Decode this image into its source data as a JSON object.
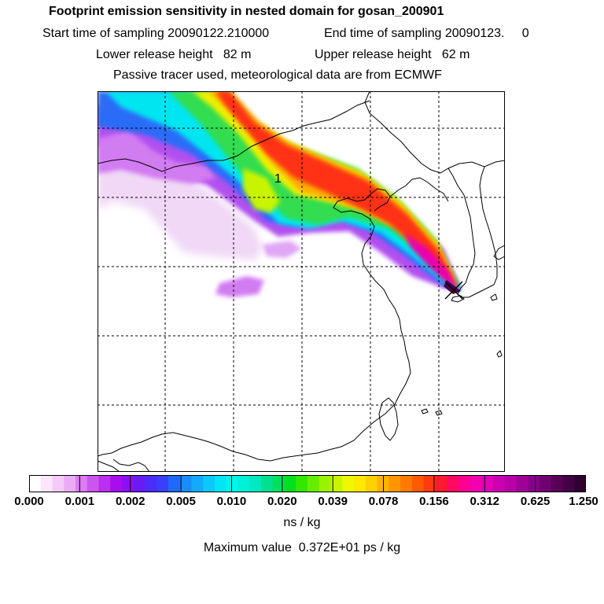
{
  "header": {
    "title": "Footprint emission sensitivity in nested domain for gosan_200901",
    "start_sampling": "Start time of sampling 20090122.210000",
    "end_sampling": "End time of sampling 20090123.     0",
    "lower_release": "Lower release height   82 m",
    "upper_release": "Upper release height   62 m",
    "tracer_note": "Passive tracer used, meteorological data are from ECMWF"
  },
  "map": {
    "marker_label": "1",
    "receptor_marker": "x-cross-icon",
    "gridlines": "dashed"
  },
  "colorbar": {
    "tick_labels": [
      "0.000",
      "0.001",
      "0.002",
      "0.005",
      "0.010",
      "0.020",
      "0.039",
      "0.078",
      "0.156",
      "0.312",
      "0.625",
      "1.250"
    ],
    "colors": [
      "#ffffff",
      "#fbe6fb",
      "#f4caf7",
      "#ebaaf5",
      "#dc7cf2",
      "#cd55ef",
      "#bc2ef0",
      "#a80df0",
      "#8b10f2",
      "#6a1bf5",
      "#4a2df8",
      "#3a3ffa",
      "#1f69fa",
      "#1a8cfa",
      "#14aafa",
      "#0dc8fa",
      "#00e6f8",
      "#00f5ec",
      "#00f0d8",
      "#00e8c0",
      "#00e090",
      "#00e060",
      "#00e020",
      "#33e800",
      "#66ee00",
      "#99f200",
      "#c8f400",
      "#eef800",
      "#ffe800",
      "#ffd000",
      "#ffb400",
      "#ff9600",
      "#ff7a00",
      "#ff5a00",
      "#ff3a10",
      "#ff1a30",
      "#ff0a60",
      "#ff0090",
      "#f000b0",
      "#e000b8",
      "#cc00b0",
      "#b800a8",
      "#a0009a",
      "#88008a",
      "#700070",
      "#580058",
      "#440044",
      "#300030"
    ],
    "unit_label": "ns / kg"
  },
  "maximum": {
    "text": "Maximum value  0.372E+01 ps / kg"
  }
}
